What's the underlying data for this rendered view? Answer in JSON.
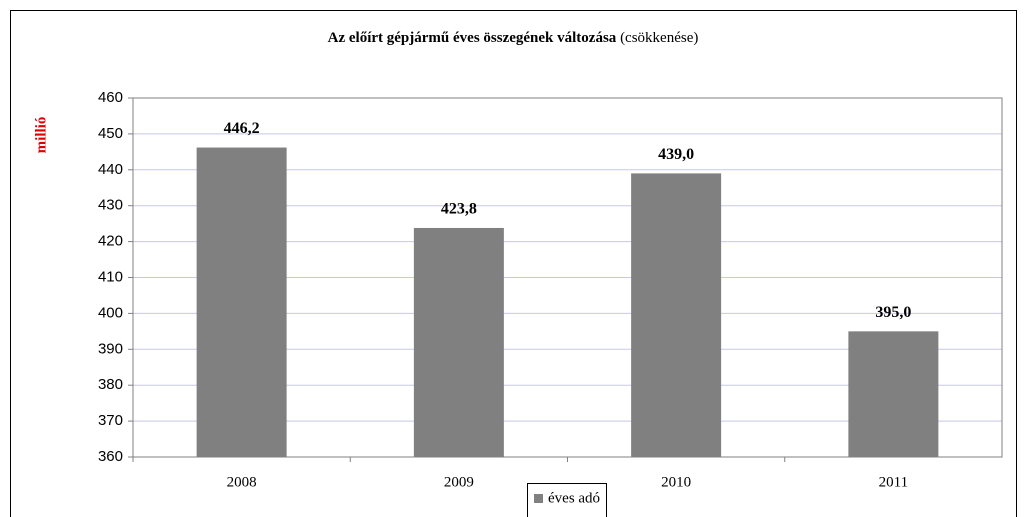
{
  "chart_data": {
    "type": "bar",
    "title": "Az előírt gépjármű éves összegének változása",
    "subtitle": "(csökkenése)",
    "y_label": "millió",
    "categories": [
      "2008",
      "2009",
      "2010",
      "2011"
    ],
    "series": [
      {
        "name": "éves adó",
        "color": "#808080",
        "values": [
          446.2,
          423.8,
          439.0,
          395.0
        ],
        "value_labels": [
          "446,2",
          "423,8",
          "439,0",
          "395,0"
        ]
      }
    ],
    "ylim": [
      360,
      460
    ],
    "yticks": [
      360,
      370,
      380,
      390,
      400,
      410,
      420,
      430,
      440,
      450,
      460
    ],
    "grid": true,
    "legend": "bottom"
  }
}
